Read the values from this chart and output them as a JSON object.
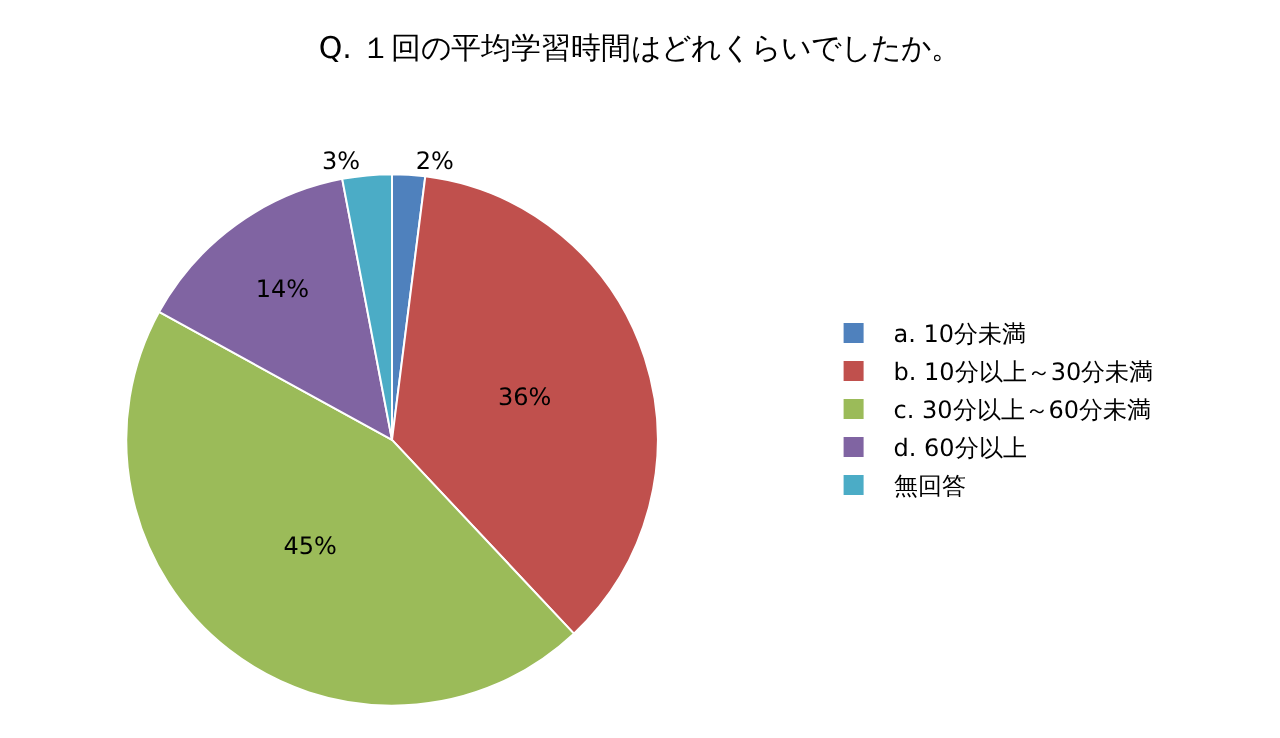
{
  "chart_data": {
    "type": "pie",
    "title": "Q. １回の平均学習時間はどれくらいでしたか。",
    "categories": [
      "a. 10分未満",
      "b. 10分以上～30分未満",
      "c. 30分以上～60分未満",
      "d. 60分以上",
      "無回答"
    ],
    "values": [
      2,
      36,
      45,
      14,
      3
    ],
    "value_labels": [
      "2%",
      "36%",
      "45%",
      "14%",
      "3%"
    ],
    "colors": [
      "#4f81bd",
      "#c0504d",
      "#9bbb59",
      "#8064a2",
      "#4bacc6"
    ],
    "legend": "right"
  }
}
